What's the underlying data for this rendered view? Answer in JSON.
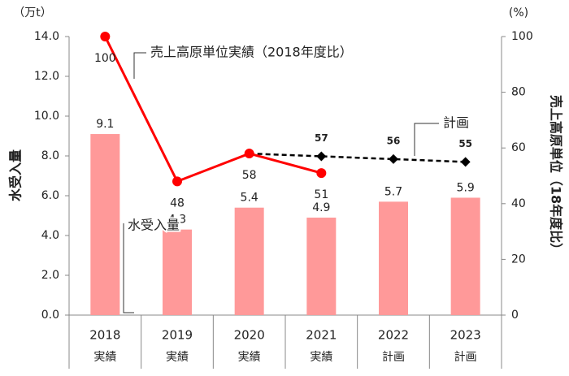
{
  "chart_data": {
    "type": "bar",
    "ylabel": "水受入量",
    "y2label": "売上高原単位（18年度比）",
    "yunit": "（万t）",
    "y2unit": "(%)",
    "categories": [
      "2018",
      "2019",
      "2020",
      "2021",
      "2022",
      "2023"
    ],
    "category_notes": [
      "実績",
      "実績",
      "実績",
      "実績",
      "計画",
      "計画"
    ],
    "ylim": [
      0,
      14
    ],
    "yticks": [
      {
        "value": 0,
        "label": "0.0"
      },
      {
        "value": 2,
        "label": "2.0"
      },
      {
        "value": 4,
        "label": "4.0"
      },
      {
        "value": 6,
        "label": "6.0"
      },
      {
        "value": 8,
        "label": "8.0"
      },
      {
        "value": 10,
        "label": "10.0"
      },
      {
        "value": 12,
        "label": "12.0"
      },
      {
        "value": 14,
        "label": "14.0"
      }
    ],
    "y2lim": [
      0,
      100
    ],
    "y2ticks": [
      0,
      20,
      40,
      60,
      80,
      100
    ],
    "series": [
      {
        "name": "水受入量",
        "type": "bar",
        "color": "#ff9999",
        "values": [
          9.1,
          4.3,
          5.4,
          4.9,
          5.7,
          5.9
        ]
      },
      {
        "name": "売上高原単位実績（2018年度比）",
        "type": "line",
        "axis": "y2",
        "color": "#ff0000",
        "values": [
          100,
          48,
          58,
          51,
          null,
          null
        ],
        "value_labels": [
          "100",
          "48",
          "58",
          "51",
          null,
          null
        ]
      },
      {
        "name": "計画",
        "type": "line",
        "axis": "y2",
        "color": "#000000",
        "dashed": true,
        "values": [
          null,
          null,
          58,
          57,
          56,
          55
        ],
        "value_labels": [
          null,
          null,
          null,
          "57",
          "56",
          "55"
        ]
      }
    ]
  }
}
